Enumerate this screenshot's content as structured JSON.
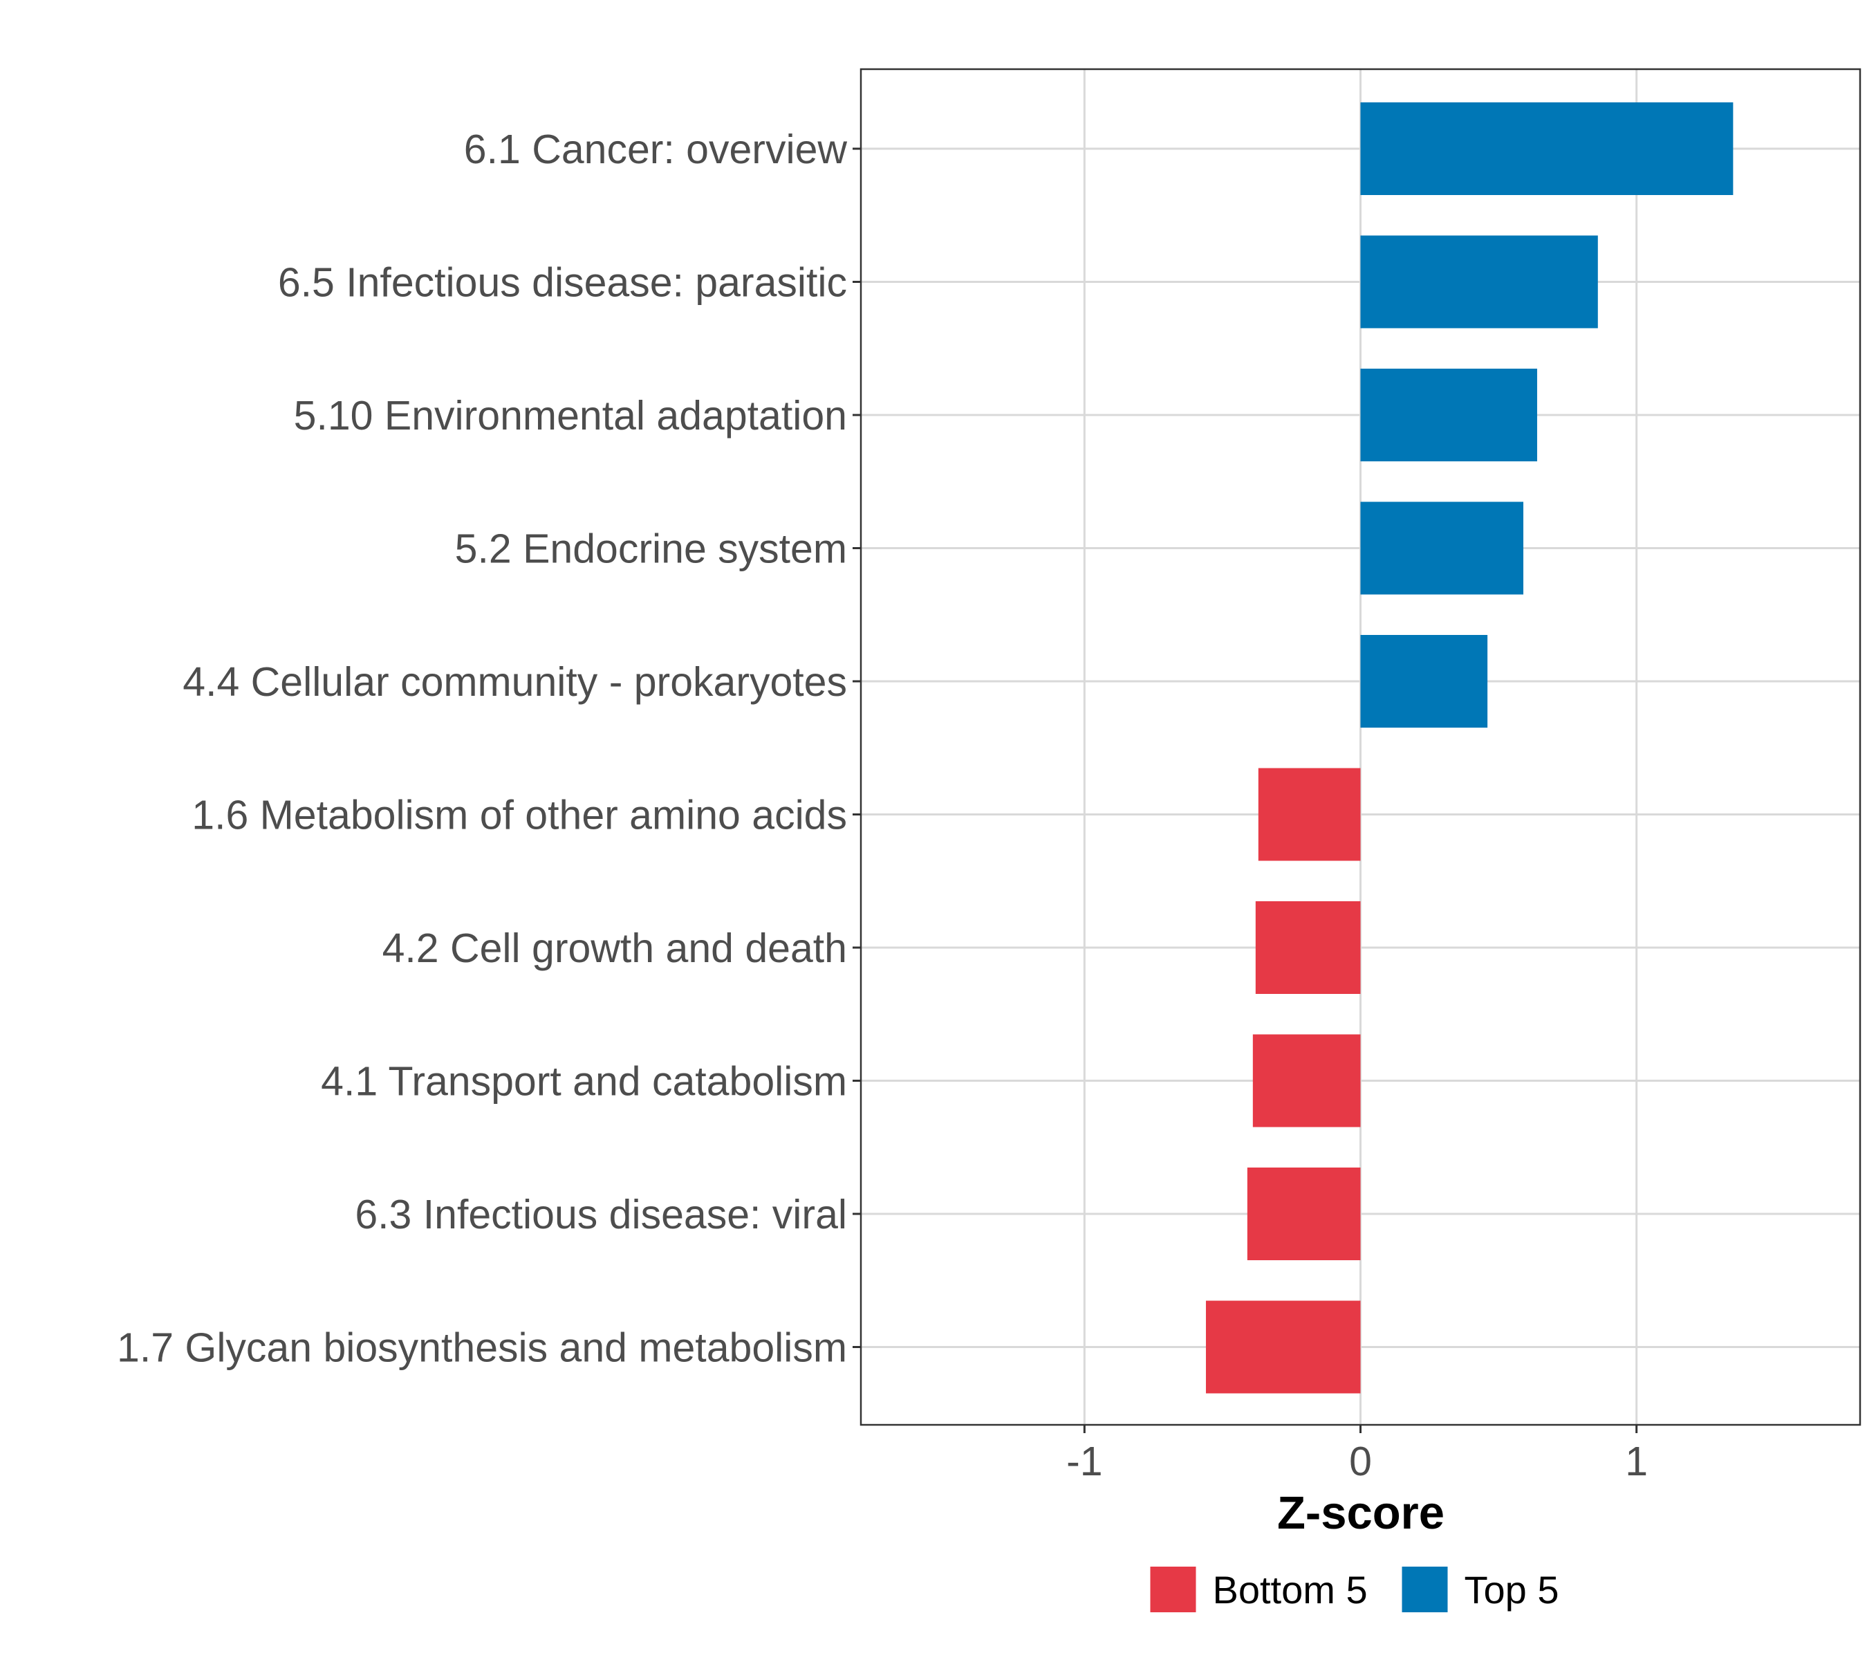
{
  "chart_data": {
    "type": "bar",
    "orientation": "horizontal",
    "categories": [
      "6.1 Cancer: overview",
      "6.5 Infectious disease: parasitic",
      "5.10 Environmental adaptation",
      "5.2 Endocrine system",
      "4.4 Cellular community - prokaryotes",
      "1.6 Metabolism of other amino acids",
      "4.2 Cell growth and death",
      "4.1 Transport and catabolism",
      "6.3 Infectious disease: viral",
      "1.7 Glycan biosynthesis and metabolism"
    ],
    "values": [
      1.35,
      0.86,
      0.64,
      0.59,
      0.46,
      -0.37,
      -0.38,
      -0.39,
      -0.41,
      -0.56
    ],
    "groups": [
      "Top 5",
      "Top 5",
      "Top 5",
      "Top 5",
      "Top 5",
      "Bottom 5",
      "Bottom 5",
      "Bottom 5",
      "Bottom 5",
      "Bottom 5"
    ],
    "title": "",
    "xlabel": "Z-score",
    "ylabel": "",
    "xlim": [
      -1.81,
      1.81
    ],
    "xticks": [
      -1,
      0,
      1
    ],
    "xtick_labels": [
      "-1",
      "0",
      "1"
    ],
    "grid": true,
    "legend": {
      "position": "bottom",
      "entries": [
        {
          "label": "Bottom 5",
          "color": "#e63946"
        },
        {
          "label": "Top 5",
          "color": "#0077b6"
        }
      ]
    },
    "colors": {
      "Top 5": "#0077b6",
      "Bottom 5": "#e63946"
    }
  }
}
